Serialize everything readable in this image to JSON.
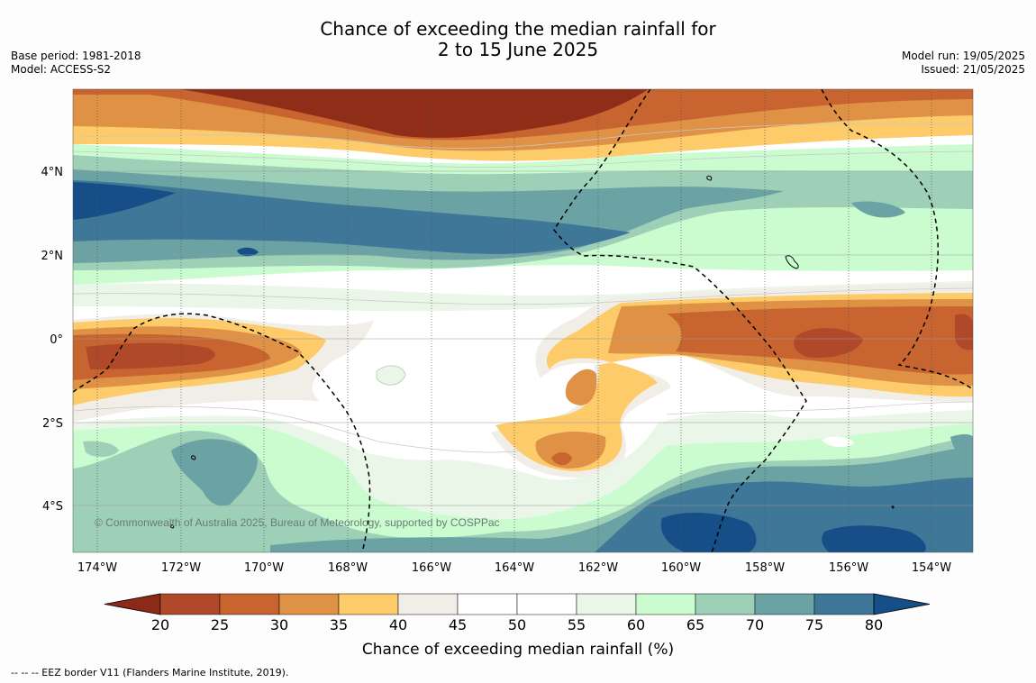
{
  "header": {
    "title_line1": "Chance of exceeding the median rainfall for",
    "title_line2": "2 to 15 June 2025",
    "base_period": "Base period: 1981-2018",
    "model": "Model: ACCESS-S2",
    "model_run": "Model run: 19/05/2025",
    "issued": "Issued: 21/05/2025"
  },
  "map": {
    "x_ticks": [
      "174°W",
      "172°W",
      "170°W",
      "168°W",
      "166°W",
      "164°W",
      "162°W",
      "160°W",
      "158°W",
      "156°W",
      "154°W"
    ],
    "y_ticks": [
      "4°N",
      "2°N",
      "0°",
      "2°S",
      "4°S"
    ],
    "copyright": "© Commonwealth of Australia 2025, Bureau of Meteorology, supported by COSPPac"
  },
  "colorbar": {
    "ticks": [
      "20",
      "25",
      "30",
      "35",
      "40",
      "45",
      "50",
      "55",
      "60",
      "65",
      "70",
      "75",
      "80"
    ],
    "colors": [
      "#8c2a18",
      "#b0492a",
      "#c8642f",
      "#df9245",
      "#fdcb6a",
      "#f1ede7",
      "#ffffff",
      "#ffffff",
      "#eaf6e8",
      "#cbfcd0",
      "#9ed0b8",
      "#6ba2a4",
      "#3f7799",
      "#164e87"
    ],
    "label": "Chance of exceeding median rainfall (%)"
  },
  "footer": {
    "legend_text": "--  --  -- EEZ border V11 (Flanders Marine Institute, 2019)."
  }
}
